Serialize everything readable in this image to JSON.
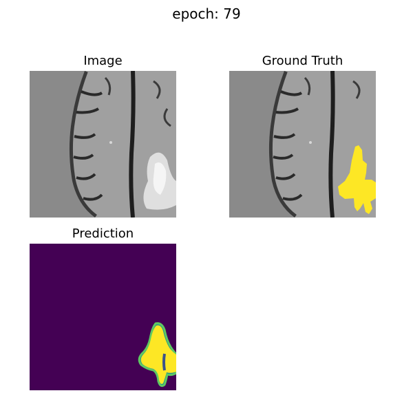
{
  "figure": {
    "suptitle": "epoch: 79"
  },
  "panels": [
    {
      "title": "Image",
      "kind": "mri-slice"
    },
    {
      "title": "Ground Truth",
      "kind": "mri-slice-with-mask",
      "mask_color": "#fde725"
    },
    {
      "title": "Prediction",
      "kind": "probability-map",
      "background_color": "#440154",
      "mask_color": "#fde725"
    }
  ]
}
